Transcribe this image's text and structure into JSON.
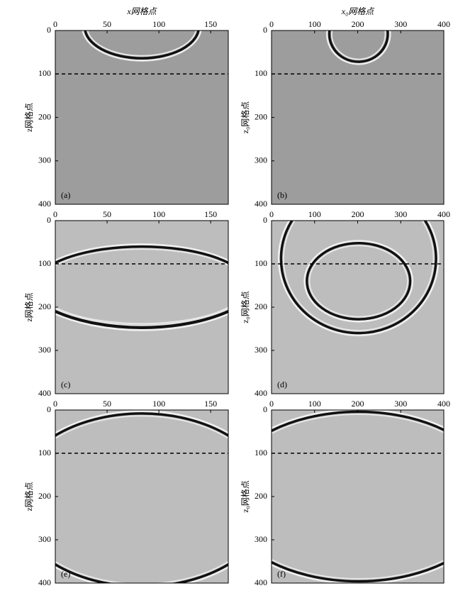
{
  "chart_data": [
    {
      "type": "image",
      "xlabel": "x网格点",
      "ylabel": "z网格点",
      "xlim": [
        0,
        167
      ],
      "xticks": [
        0,
        50,
        100,
        150
      ],
      "ylim": [
        0,
        400
      ],
      "yticks": [
        0,
        100,
        200,
        300,
        400
      ],
      "panel_label": "(a)",
      "reference_line": 100,
      "background": "#9d9d9d"
    },
    {
      "type": "image",
      "xlabel": "x₀网格点",
      "ylabel": "z₀网格点",
      "xlim": [
        0,
        400
      ],
      "xticks": [
        0,
        100,
        200,
        300,
        400
      ],
      "ylim": [
        0,
        400
      ],
      "yticks": [
        0,
        100,
        200,
        300,
        400
      ],
      "panel_label": "(b)",
      "reference_line": 100,
      "background": "#9d9d9d"
    },
    {
      "type": "image",
      "ylabel": "z网格点",
      "xlim": [
        0,
        167
      ],
      "xticks": [
        0,
        50,
        100,
        150
      ],
      "ylim": [
        0,
        400
      ],
      "yticks": [
        0,
        100,
        200,
        300,
        400
      ],
      "panel_label": "(c)",
      "reference_line": 100,
      "background": "#bdbdbd"
    },
    {
      "type": "image",
      "ylabel": "z₀网格点",
      "xlim": [
        0,
        400
      ],
      "xticks": [
        0,
        100,
        200,
        300,
        400
      ],
      "ylim": [
        0,
        400
      ],
      "yticks": [
        0,
        100,
        200,
        300,
        400
      ],
      "panel_label": "(d)",
      "reference_line": 100,
      "background": "#bdbdbd"
    },
    {
      "type": "image",
      "ylabel": "z网格点",
      "xlim": [
        0,
        167
      ],
      "xticks": [
        0,
        50,
        100,
        150
      ],
      "ylim": [
        0,
        400
      ],
      "yticks": [
        0,
        100,
        200,
        300,
        400
      ],
      "panel_label": "(e)",
      "reference_line": 100,
      "background": "#bdbdbd"
    },
    {
      "type": "image",
      "ylabel": "z₀网格点",
      "xlim": [
        0,
        400
      ],
      "xticks": [
        0,
        100,
        200,
        300,
        400
      ],
      "ylim": [
        0,
        400
      ],
      "yticks": [
        0,
        100,
        200,
        300,
        400
      ],
      "panel_label": "(f)",
      "reference_line": 100,
      "background": "#bdbdbd"
    }
  ]
}
